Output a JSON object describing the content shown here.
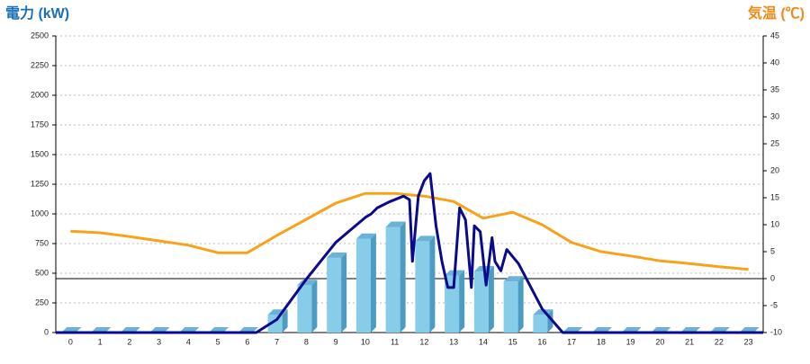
{
  "chart_data": {
    "type": "bar",
    "y_label": "電力 (kW)",
    "y2_label": "気温 (℃)",
    "categories": [
      "0",
      "1",
      "2",
      "3",
      "4",
      "5",
      "6",
      "7",
      "8",
      "9",
      "10",
      "11",
      "12",
      "13",
      "14",
      "15",
      "16",
      "17",
      "18",
      "19",
      "20",
      "21",
      "22",
      "23"
    ],
    "ylim": [
      0,
      2500
    ],
    "yticks": [
      0,
      250,
      500,
      750,
      1000,
      1250,
      1500,
      1750,
      2000,
      2250,
      2500
    ],
    "y2lim": [
      -10,
      45
    ],
    "y2ticks": [
      -10,
      -5,
      0,
      5,
      10,
      15,
      20,
      25,
      30,
      35,
      40,
      45
    ],
    "grid": true,
    "series": [
      {
        "type": "bar",
        "color": "#87cdea",
        "values": [
          0,
          0,
          0,
          0,
          0,
          0,
          0,
          150,
          400,
          630,
          790,
          890,
          770,
          480,
          515,
          430,
          150,
          0,
          0,
          0,
          0,
          0,
          0,
          0
        ]
      },
      {
        "type": "line",
        "axis": "y2",
        "color": "#f7a21b",
        "values": [
          8.8,
          8.5,
          7.8,
          7,
          6.2,
          4.8,
          4.8,
          8,
          11,
          14,
          15.8,
          15.8,
          15.3,
          14.3,
          11.2,
          12.3,
          10,
          6.7,
          5,
          4.2,
          3.3,
          2.8,
          2.2,
          1.7
        ]
      },
      {
        "type": "line",
        "color": "#0a0a8c",
        "x": [
          -0.5,
          6.3,
          7,
          8,
          9,
          10,
          10.2,
          10.4,
          10.8,
          11.3,
          11.5,
          11.6,
          11.8,
          12.0,
          12.2,
          12.4,
          12.6,
          12.8,
          13.0,
          13.2,
          13.4,
          13.6,
          13.7,
          13.9,
          14.1,
          14.3,
          14.4,
          14.6,
          14.8,
          15.2,
          16,
          16.7,
          23.5
        ],
        "values": [
          0,
          0,
          110,
          450,
          760,
          970,
          1000,
          1050,
          1100,
          1150,
          1120,
          600,
          1150,
          1280,
          1340,
          900,
          600,
          380,
          380,
          1050,
          950,
          380,
          900,
          850,
          400,
          800,
          600,
          520,
          700,
          580,
          200,
          0,
          0
        ]
      }
    ]
  }
}
